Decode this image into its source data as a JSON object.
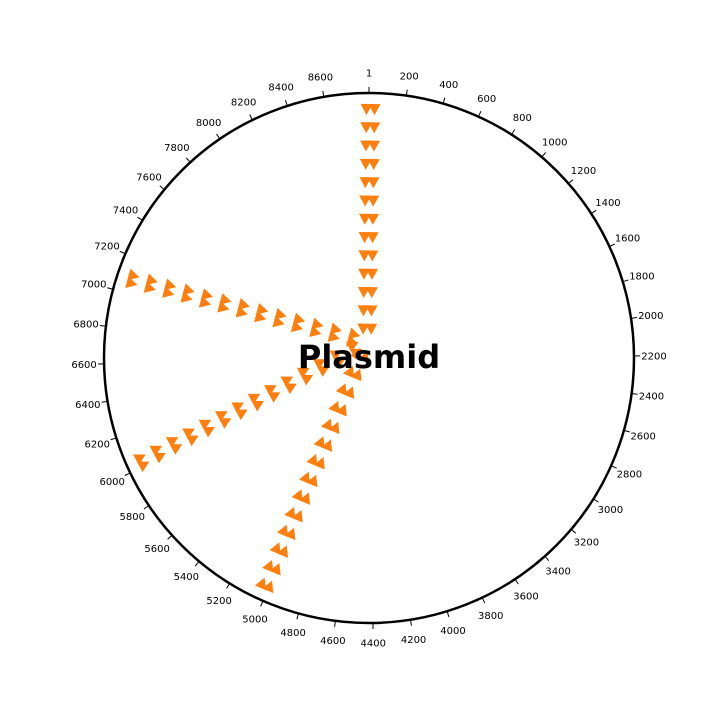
{
  "title": "Plasmid",
  "plasmid": {
    "length": 8840,
    "tick_labels": [
      1,
      200,
      400,
      600,
      800,
      1000,
      1200,
      1400,
      1600,
      1800,
      2000,
      2200,
      2400,
      2600,
      2800,
      3000,
      3200,
      3400,
      3600,
      3800,
      4000,
      4200,
      4400,
      4600,
      4800,
      5000,
      5200,
      5400,
      5600,
      5800,
      6000,
      6200,
      6400,
      6600,
      6800,
      7000,
      7200,
      7400,
      7600,
      7800,
      8000,
      8200,
      8400,
      8600
    ]
  },
  "features": [
    {
      "position": 10,
      "color": "#ff7f0e"
    },
    {
      "position": 5020,
      "color": "#ff7f0e"
    },
    {
      "position": 6030,
      "color": "#ff7f0e"
    },
    {
      "position": 7080,
      "color": "#ff7f0e"
    }
  ],
  "colors": {
    "ring": "#000000",
    "feature": "#ff7f0e"
  }
}
